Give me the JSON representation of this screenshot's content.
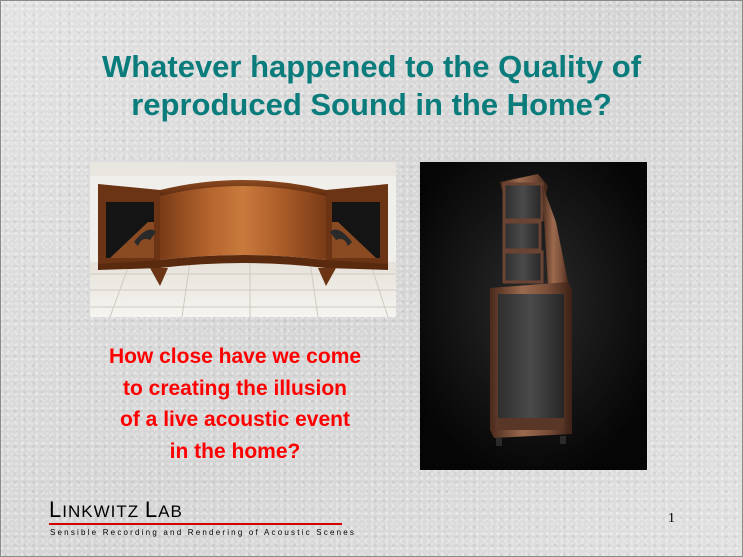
{
  "slide": {
    "title_line1": "Whatever happened to the Quality of",
    "title_line2": "reproduced Sound in the Home?",
    "question_lines": [
      "How close have we come",
      "to creating the illusion",
      "of a live acoustic event",
      "in the home?"
    ],
    "page_number": "1",
    "colors": {
      "title": "#0b7c7c",
      "question": "#ff0000",
      "logo_rule": "#d30000"
    }
  },
  "logo": {
    "name_initial_1": "L",
    "name_rest_1": "INKWITZ",
    "name_initial_2": "L",
    "name_rest_2": "AB",
    "tagline": "Sensible Recording and Rendering of Acoustic Scenes"
  },
  "images": {
    "left_photo": "wooden-horn-loudspeaker-cabinet-photo",
    "right_photo": "tall-tower-loudspeaker-photo"
  }
}
